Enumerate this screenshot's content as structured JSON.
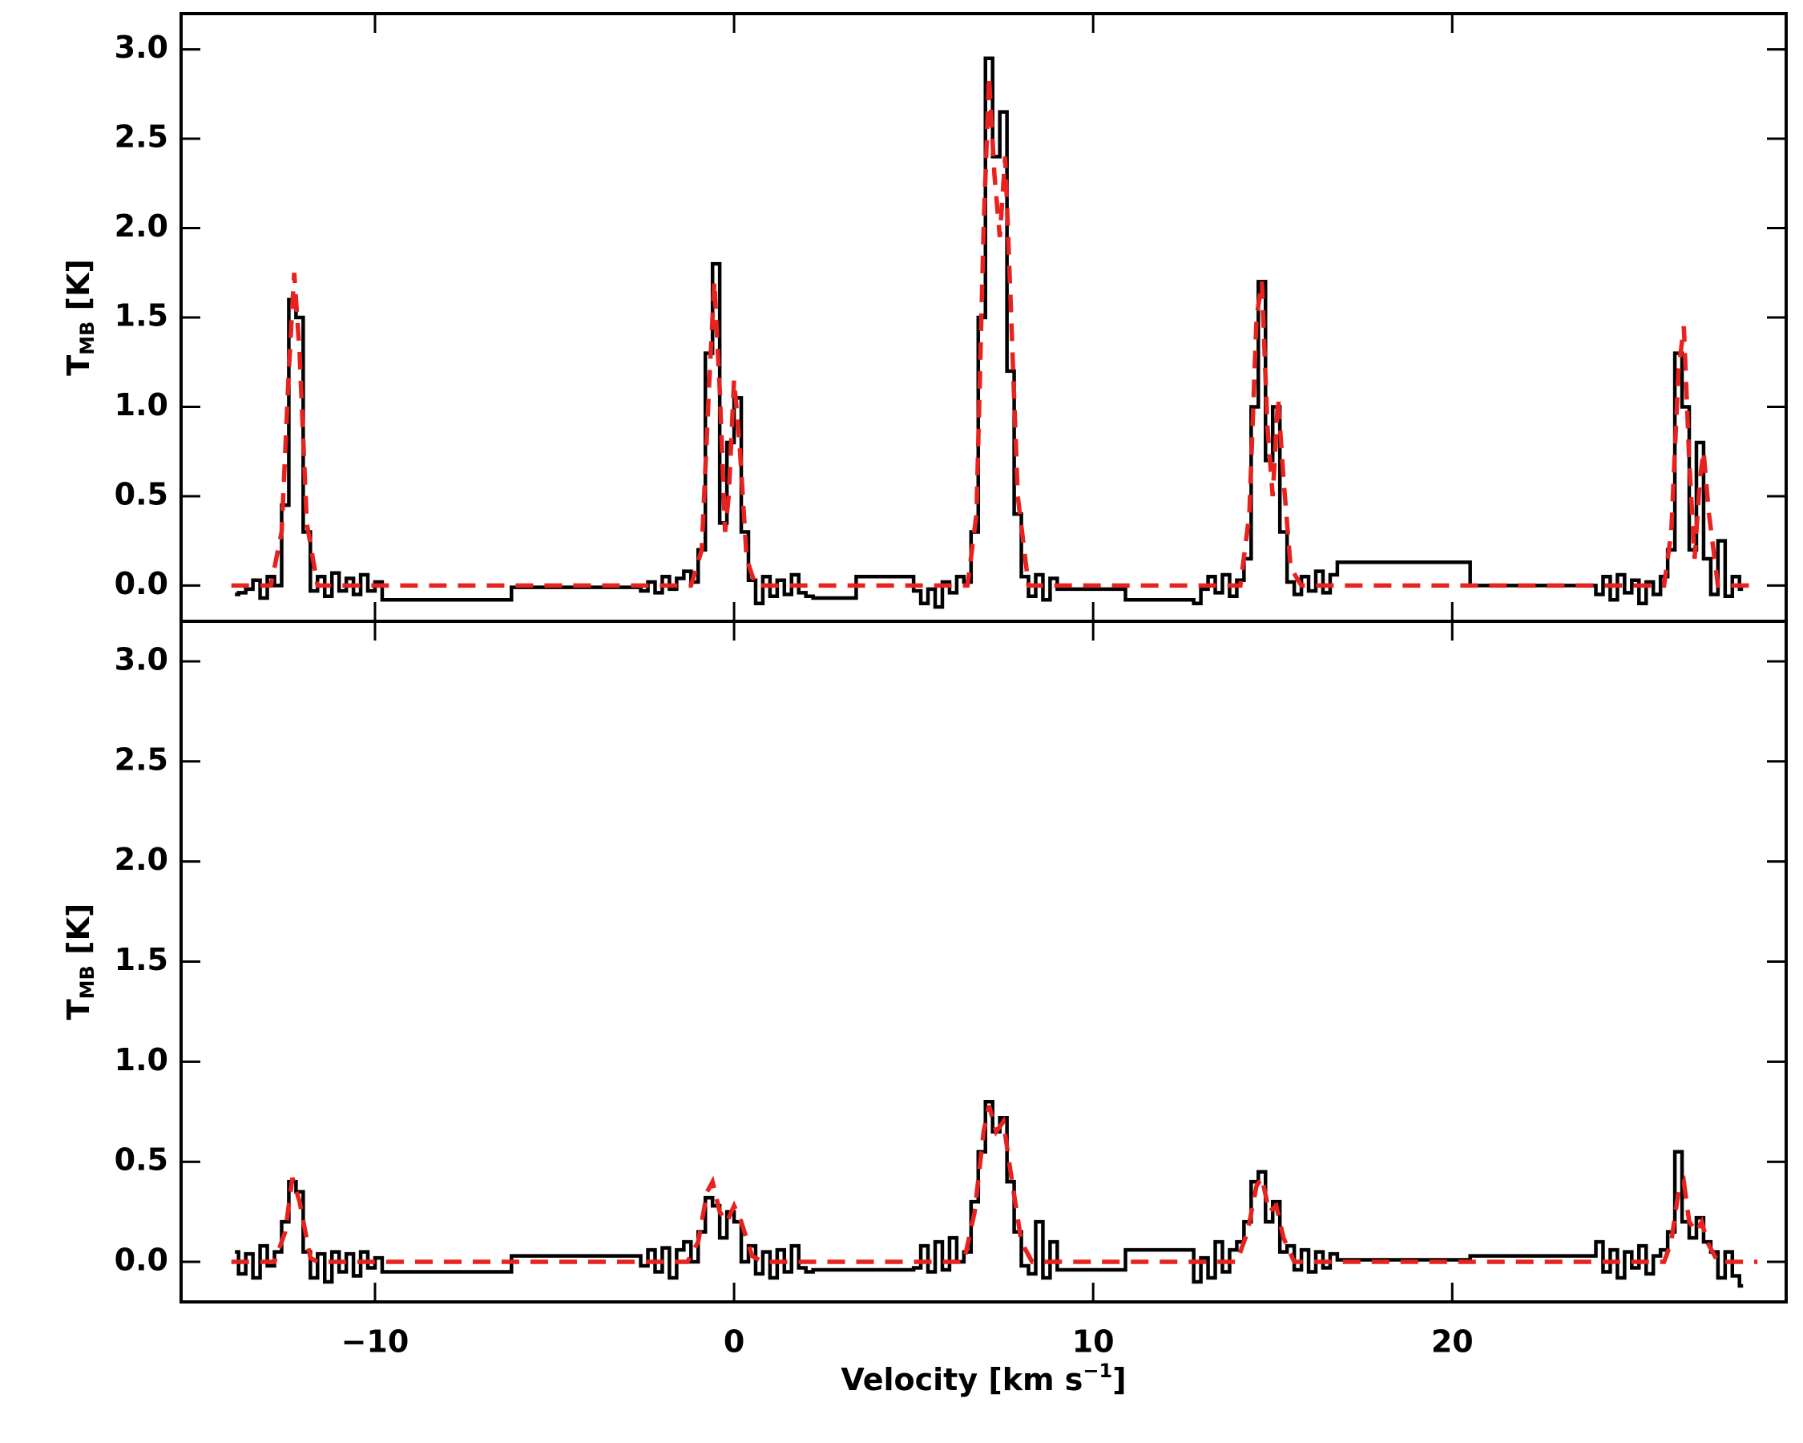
{
  "chart_data": [
    {
      "type": "line",
      "ylabel": {
        "main": "T",
        "sub": "MB",
        "rest": " [K]"
      },
      "xlim": [
        -15.4,
        29.3
      ],
      "ylim": [
        -0.2,
        3.2
      ],
      "xticks": [
        -10,
        0,
        10,
        20
      ],
      "xticklabels": false,
      "yticks": [
        {
          "value": 0,
          "label": "0.0"
        },
        0.5,
        {
          "value": 1,
          "label": "1.0"
        },
        1.5,
        {
          "value": 2,
          "label": "2.0"
        },
        2.5,
        {
          "value": 3,
          "label": "3.0"
        }
      ],
      "series": [
        {
          "color": "#000000",
          "drawstyle": "steps-mid",
          "x": [
            -13.9,
            -13.7,
            -13.5,
            -13.3,
            -13.1,
            -12.9,
            -12.7,
            -12.5,
            -12.3,
            -12.1,
            -11.9,
            -11.7,
            -11.5,
            -11.3,
            -11.1,
            -10.9,
            -10.7,
            -10.5,
            -10.3,
            -10.1,
            -9.9,
            -9.7,
            -6.3,
            -6.1,
            -2.7,
            -2.5,
            -2.3,
            -2.1,
            -1.9,
            -1.7,
            -1.5,
            -1.3,
            -1.1,
            -0.9,
            -0.7,
            -0.5,
            -0.3,
            -0.1,
            0.1,
            0.3,
            0.5,
            0.7,
            0.9,
            1.1,
            1.3,
            1.5,
            1.7,
            1.9,
            2.1,
            2.3,
            3.3,
            3.5,
            4.9,
            5.1,
            5.3,
            5.5,
            5.7,
            5.9,
            6.1,
            6.3,
            6.5,
            6.7,
            6.9,
            7.1,
            7.3,
            7.5,
            7.7,
            7.9,
            8.1,
            8.3,
            8.5,
            8.7,
            8.9,
            9.1,
            10.8,
            11.0,
            12.7,
            12.9,
            13.1,
            13.3,
            13.5,
            13.7,
            13.9,
            14.1,
            14.3,
            14.5,
            14.7,
            14.9,
            15.1,
            15.3,
            15.5,
            15.7,
            15.9,
            16.1,
            16.3,
            16.5,
            16.7,
            16.9,
            20.4,
            20.6,
            23.9,
            24.1,
            24.3,
            24.5,
            24.7,
            24.9,
            25.1,
            25.3,
            25.5,
            25.7,
            25.9,
            26.1,
            26.3,
            26.5,
            26.7,
            26.9,
            27.1,
            27.3,
            27.5,
            27.7,
            27.9,
            28.1
          ],
          "values": [
            -0.05,
            -0.04,
            -0.02,
            0.03,
            -0.07,
            0.05,
            0.0,
            0.45,
            1.6,
            1.5,
            0.3,
            -0.03,
            0.05,
            -0.06,
            0.07,
            -0.03,
            0.04,
            -0.05,
            0.06,
            -0.03,
            0.02,
            -0.08,
            -0.08,
            -0.01,
            -0.01,
            -0.03,
            0.02,
            -0.04,
            0.05,
            -0.02,
            0.04,
            0.08,
            0.02,
            0.2,
            1.3,
            1.8,
            0.35,
            0.8,
            1.05,
            0.3,
            0.03,
            -0.1,
            0.05,
            -0.06,
            0.03,
            -0.05,
            0.06,
            -0.04,
            -0.06,
            -0.07,
            -0.07,
            0.05,
            0.05,
            -0.03,
            -0.1,
            -0.02,
            -0.12,
            0.02,
            -0.04,
            0.05,
            0.02,
            0.3,
            1.5,
            2.95,
            2.4,
            2.65,
            1.2,
            0.4,
            0.05,
            -0.06,
            0.06,
            -0.08,
            0.04,
            -0.02,
            -0.02,
            -0.08,
            -0.08,
            -0.1,
            -0.02,
            0.05,
            -0.04,
            0.06,
            -0.06,
            0.03,
            0.15,
            1.0,
            1.7,
            0.7,
            1.0,
            0.3,
            0.02,
            -0.05,
            0.05,
            -0.03,
            0.08,
            -0.04,
            0.06,
            0.13,
            0.13,
            0.0,
            0.0,
            -0.05,
            0.05,
            -0.08,
            0.06,
            -0.04,
            0.03,
            -0.1,
            0.02,
            -0.05,
            0.05,
            0.2,
            1.3,
            1.0,
            0.2,
            0.8,
            0.15,
            -0.05,
            0.25,
            -0.06,
            0.05,
            -0.02
          ]
        },
        {
          "color": "#e8221e",
          "dashed": true,
          "x": [
            -14,
            -12.9,
            -12.6,
            -12.4,
            -12.25,
            -12.1,
            -11.9,
            -11.6,
            -1.2,
            -0.9,
            -0.7,
            -0.55,
            -0.4,
            -0.25,
            -0.15,
            0.0,
            0.15,
            0.35,
            0.6,
            6.5,
            6.75,
            6.95,
            7.1,
            7.25,
            7.4,
            7.55,
            7.7,
            7.9,
            8.2,
            14.1,
            14.35,
            14.55,
            14.7,
            14.85,
            15.0,
            15.15,
            15.3,
            15.5,
            15.8,
            25.9,
            26.1,
            26.3,
            26.45,
            26.6,
            26.75,
            26.9,
            27.0,
            27.15,
            27.4,
            28.5
          ],
          "values": [
            0,
            0,
            0.3,
            1.2,
            1.75,
            1.3,
            0.35,
            0,
            0,
            0.2,
            1.1,
            1.7,
            1.1,
            0.3,
            0.5,
            1.15,
            0.8,
            0.15,
            0,
            0,
            0.4,
            2.0,
            2.85,
            2.3,
            1.95,
            2.4,
            1.6,
            0.5,
            0,
            0,
            0.4,
            1.5,
            1.7,
            0.9,
            0.5,
            1.05,
            0.6,
            0.1,
            0,
            0,
            0.3,
            1.2,
            1.45,
            0.7,
            0.15,
            0.6,
            0.75,
            0.4,
            0,
            0
          ]
        }
      ]
    },
    {
      "type": "line",
      "ylabel": {
        "main": "T",
        "sub": "MB",
        "rest": " [K]"
      },
      "xlabel": {
        "main": "Velocity [km s",
        "sup": "−1",
        "rest": "]"
      },
      "xlim": [
        -15.4,
        29.3
      ],
      "ylim": [
        -0.2,
        3.2
      ],
      "xticks": [
        {
          "value": -10,
          "label": "−10"
        },
        0,
        10,
        20
      ],
      "yticks": [
        {
          "value": 0,
          "label": "0.0"
        },
        0.5,
        {
          "value": 1,
          "label": "1.0"
        },
        1.5,
        {
          "value": 2,
          "label": "2.0"
        },
        2.5,
        {
          "value": 3,
          "label": "3.0"
        }
      ],
      "series": [
        {
          "color": "#000000",
          "drawstyle": "steps-mid",
          "x": [
            -13.9,
            -13.7,
            -13.5,
            -13.3,
            -13.1,
            -12.9,
            -12.7,
            -12.5,
            -12.3,
            -12.1,
            -11.9,
            -11.7,
            -11.5,
            -11.3,
            -11.1,
            -10.9,
            -10.7,
            -10.5,
            -10.3,
            -10.1,
            -9.9,
            -9.7,
            -6.3,
            -6.1,
            -2.7,
            -2.5,
            -2.3,
            -2.1,
            -1.9,
            -1.7,
            -1.5,
            -1.3,
            -1.1,
            -0.9,
            -0.7,
            -0.5,
            -0.3,
            -0.1,
            0.1,
            0.3,
            0.5,
            0.7,
            0.9,
            1.1,
            1.3,
            1.5,
            1.7,
            1.9,
            2.1,
            2.3,
            4.9,
            5.1,
            5.3,
            5.5,
            5.7,
            5.9,
            6.1,
            6.3,
            6.5,
            6.7,
            6.9,
            7.1,
            7.3,
            7.5,
            7.7,
            7.9,
            8.1,
            8.3,
            8.5,
            8.7,
            8.9,
            9.1,
            10.8,
            11.0,
            12.7,
            12.9,
            13.1,
            13.3,
            13.5,
            13.7,
            13.9,
            14.1,
            14.3,
            14.5,
            14.7,
            14.9,
            15.1,
            15.3,
            15.5,
            15.7,
            15.9,
            16.1,
            16.3,
            16.5,
            16.7,
            16.9,
            20.4,
            20.6,
            23.9,
            24.1,
            24.3,
            24.5,
            24.7,
            24.9,
            25.1,
            25.3,
            25.5,
            25.7,
            25.9,
            26.1,
            26.3,
            26.5,
            26.7,
            26.9,
            27.1,
            27.3,
            27.5,
            27.7,
            27.9,
            28.1
          ],
          "values": [
            0.05,
            -0.06,
            0.04,
            -0.08,
            0.08,
            -0.02,
            0.05,
            0.2,
            0.4,
            0.35,
            0.05,
            -0.08,
            0.04,
            -0.1,
            0.05,
            -0.05,
            0.04,
            -0.07,
            0.05,
            -0.03,
            0.02,
            -0.05,
            -0.05,
            0.03,
            0.03,
            -0.02,
            0.06,
            -0.05,
            0.07,
            -0.08,
            0.06,
            0.1,
            0.0,
            0.15,
            0.32,
            0.28,
            0.12,
            0.25,
            0.2,
            0.0,
            0.08,
            -0.06,
            0.05,
            -0.08,
            0.06,
            -0.05,
            0.08,
            -0.03,
            -0.05,
            -0.04,
            -0.04,
            -0.03,
            0.08,
            -0.05,
            0.1,
            -0.04,
            0.12,
            0.0,
            0.05,
            0.3,
            0.55,
            0.8,
            0.65,
            0.72,
            0.4,
            0.15,
            -0.02,
            -0.06,
            0.2,
            -0.08,
            0.1,
            -0.04,
            -0.04,
            0.06,
            0.06,
            -0.1,
            0.02,
            -0.08,
            0.1,
            -0.05,
            0.06,
            0.1,
            0.2,
            0.4,
            0.45,
            0.2,
            0.3,
            0.05,
            0.08,
            -0.04,
            0.06,
            -0.05,
            0.05,
            -0.03,
            0.04,
            0.01,
            0.01,
            0.03,
            0.03,
            0.1,
            -0.05,
            0.06,
            -0.08,
            0.05,
            -0.03,
            0.08,
            -0.06,
            0.03,
            0.06,
            0.15,
            0.55,
            0.2,
            0.12,
            0.22,
            0.1,
            0.05,
            -0.08,
            0.05,
            -0.07,
            -0.12
          ]
        },
        {
          "color": "#e8221e",
          "dashed": true,
          "x": [
            -14,
            -12.8,
            -12.5,
            -12.3,
            -12.1,
            -11.8,
            -11.6,
            -1.3,
            -1.0,
            -0.75,
            -0.6,
            -0.4,
            -0.2,
            0.0,
            0.2,
            0.5,
            0.8,
            6.4,
            6.7,
            6.95,
            7.1,
            7.3,
            7.5,
            7.7,
            8.0,
            8.3,
            14.0,
            14.3,
            14.55,
            14.7,
            14.9,
            15.1,
            15.3,
            15.6,
            25.9,
            26.1,
            26.3,
            26.45,
            26.6,
            26.8,
            26.95,
            27.1,
            27.4,
            28.5
          ],
          "values": [
            0,
            0,
            0.15,
            0.42,
            0.3,
            0.02,
            0,
            0,
            0.1,
            0.35,
            0.4,
            0.25,
            0.2,
            0.28,
            0.2,
            0.03,
            0,
            0,
            0.25,
            0.65,
            0.78,
            0.65,
            0.7,
            0.45,
            0.1,
            0,
            0,
            0.15,
            0.38,
            0.42,
            0.25,
            0.28,
            0.12,
            0,
            0,
            0.1,
            0.35,
            0.4,
            0.2,
            0.15,
            0.2,
            0.1,
            0,
            0
          ]
        }
      ]
    }
  ]
}
